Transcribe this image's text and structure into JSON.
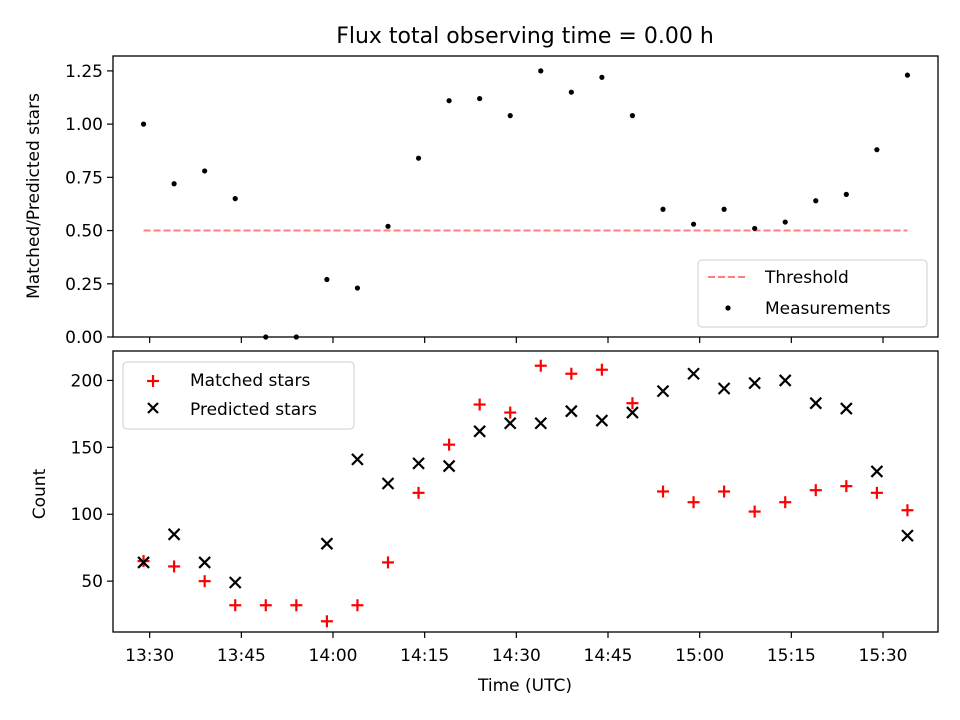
{
  "chart_data": [
    {
      "type": "scatter",
      "title": "Flux total observing time = 0.00 h",
      "xlabel": "",
      "ylabel": "Matched/Predicted stars",
      "ylim": [
        0,
        1.32
      ],
      "yticks": [
        "0.00",
        "0.25",
        "0.50",
        "0.75",
        "1.00",
        "1.25"
      ],
      "ytick_values": [
        0,
        0.25,
        0.5,
        0.75,
        1.0,
        1.25
      ],
      "legend_position": "bottom-right",
      "grid": false,
      "series": [
        {
          "name": "Threshold",
          "kind": "dashed-line",
          "color": "#ff7f7f",
          "x": [
            "13:29",
            "15:34"
          ],
          "y": [
            0.5,
            0.5
          ]
        },
        {
          "name": "Measurements",
          "kind": "dot",
          "color": "#000000",
          "x": [
            "13:29",
            "13:34",
            "13:39",
            "13:44",
            "13:49",
            "13:54",
            "13:59",
            "14:04",
            "14:09",
            "14:14",
            "14:19",
            "14:24",
            "14:29",
            "14:34",
            "14:39",
            "14:44",
            "14:49",
            "14:54",
            "14:59",
            "15:04",
            "15:09",
            "15:14",
            "15:19",
            "15:24",
            "15:29",
            "15:34"
          ],
          "y": [
            1.0,
            0.72,
            0.78,
            0.65,
            0.0,
            0.0,
            0.27,
            0.23,
            0.52,
            0.84,
            1.11,
            1.12,
            1.04,
            1.25,
            1.15,
            1.22,
            1.04,
            0.6,
            0.53,
            0.6,
            0.51,
            0.54,
            0.64,
            0.67,
            0.88,
            1.23
          ]
        }
      ]
    },
    {
      "type": "scatter",
      "title": "",
      "xlabel": "Time (UTC)",
      "ylabel": "Count",
      "xlim": [
        "13:24",
        "15:39"
      ],
      "xticks": [
        "13:30",
        "13:45",
        "14:00",
        "14:15",
        "14:30",
        "14:45",
        "15:00",
        "15:15",
        "15:30"
      ],
      "ylim": [
        12,
        222
      ],
      "yticks": [
        "50",
        "100",
        "150",
        "200"
      ],
      "ytick_values": [
        50,
        100,
        150,
        200
      ],
      "legend_position": "top-left",
      "grid": false,
      "series": [
        {
          "name": "Matched stars",
          "kind": "plus",
          "color": "#ff0000",
          "x": [
            "13:29",
            "13:34",
            "13:39",
            "13:44",
            "13:49",
            "13:54",
            "13:59",
            "14:04",
            "14:09",
            "14:14",
            "14:19",
            "14:24",
            "14:29",
            "14:34",
            "14:39",
            "14:44",
            "14:49",
            "14:54",
            "14:59",
            "15:04",
            "15:09",
            "15:14",
            "15:19",
            "15:24",
            "15:29",
            "15:34"
          ],
          "y": [
            65,
            61,
            50,
            32,
            32,
            32,
            20,
            32,
            64,
            116,
            152,
            182,
            176,
            211,
            205,
            208,
            183,
            117,
            109,
            117,
            102,
            109,
            118,
            121,
            116,
            103
          ]
        },
        {
          "name": "Predicted stars",
          "kind": "x",
          "color": "#000000",
          "x": [
            "13:29",
            "13:34",
            "13:39",
            "13:44",
            "13:59",
            "14:04",
            "14:09",
            "14:14",
            "14:19",
            "14:24",
            "14:29",
            "14:34",
            "14:39",
            "14:44",
            "14:49",
            "14:54",
            "14:59",
            "15:04",
            "15:09",
            "15:14",
            "15:19",
            "15:24",
            "15:29",
            "15:34"
          ],
          "y": [
            64,
            85,
            64,
            49,
            78,
            141,
            123,
            138,
            136,
            162,
            168,
            168,
            177,
            170,
            176,
            192,
            205,
            194,
            198,
            200,
            183,
            179,
            132,
            84
          ]
        }
      ]
    }
  ]
}
